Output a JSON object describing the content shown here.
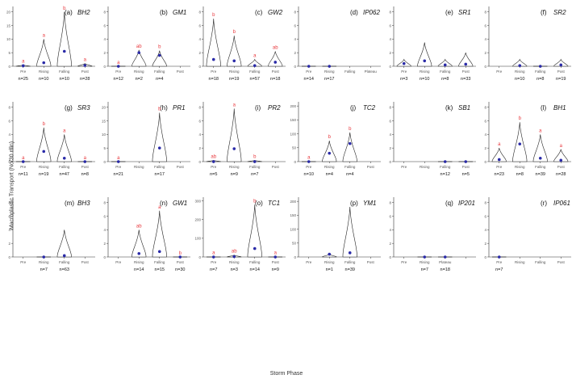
{
  "figure": {
    "ylabel": "Macroplastic Transport (No/30 min)",
    "xlabel": "Storm Phase"
  },
  "colors": {
    "letters": "#e8383d",
    "points": "#2a2aa8",
    "violin": "#222222",
    "axis": "#333333"
  },
  "chart_data": [
    {
      "type": "violin",
      "id": "a",
      "tag": "(a)",
      "site": "BH2",
      "categories": [
        "Pre",
        "Rising",
        "Falling",
        "Post"
      ],
      "yticks": [
        0,
        5,
        10,
        15,
        20
      ],
      "ylim": [
        0,
        22
      ],
      "means": [
        0.2,
        1.3,
        5.5,
        0.3
      ],
      "maxes": [
        0.5,
        10,
        20,
        1
      ],
      "letters": [
        "a",
        "a",
        "b",
        "a"
      ],
      "counts": [
        "n=25",
        "n=10",
        "n=10",
        "n=28"
      ]
    },
    {
      "type": "violin",
      "id": "b",
      "tag": "(b)",
      "site": "GM1",
      "categories": [
        "Pre",
        "Rising",
        "Falling",
        "Post"
      ],
      "yticks": [
        0,
        2,
        4,
        6,
        8
      ],
      "ylim": [
        0,
        8.8
      ],
      "means": [
        0,
        2,
        1.6,
        null
      ],
      "maxes": [
        0,
        2.4,
        2.3,
        null
      ],
      "letters": [
        "a",
        "ab",
        "b",
        ""
      ],
      "counts": [
        "n=12",
        "n=2",
        "n=4",
        ""
      ]
    },
    {
      "type": "violin",
      "id": "c",
      "tag": "(c)",
      "site": "GW2",
      "categories": [
        "Pre",
        "Rising",
        "Falling",
        "Post"
      ],
      "yticks": [
        0,
        2,
        4,
        6,
        8
      ],
      "ylim": [
        0,
        8.8
      ],
      "means": [
        1,
        0.8,
        0.1,
        0.6
      ],
      "maxes": [
        7,
        4.5,
        1,
        2.2
      ],
      "letters": [
        "b",
        "b",
        "a",
        "ab"
      ],
      "counts": [
        "n=18",
        "n=19",
        "n=57",
        "n=18"
      ]
    },
    {
      "type": "violin",
      "id": "d",
      "tag": "(d)",
      "site": "IP062",
      "categories": [
        "Pre",
        "Rising",
        "Falling",
        "Plateau"
      ],
      "yticks": [
        0,
        2,
        4,
        6,
        8
      ],
      "ylim": [
        0,
        8.8
      ],
      "means": [
        0,
        0,
        null,
        null
      ],
      "maxes": [
        0,
        0,
        null,
        null
      ],
      "letters": [
        "",
        "",
        "",
        ""
      ],
      "counts": [
        "n=14",
        "n=17",
        "",
        ""
      ]
    },
    {
      "type": "violin",
      "id": "e",
      "tag": "(e)",
      "site": "SR1",
      "categories": [
        "Pre",
        "Rising",
        "Falling",
        "Post"
      ],
      "yticks": [
        0,
        2,
        4,
        6,
        8
      ],
      "ylim": [
        0,
        8.8
      ],
      "means": [
        0.4,
        0.8,
        0.2,
        0.3
      ],
      "maxes": [
        1,
        3.5,
        1,
        2
      ],
      "letters": [
        "",
        "",
        "",
        ""
      ],
      "counts": [
        "n=3",
        "n=10",
        "n=8",
        "n=33"
      ]
    },
    {
      "type": "violin",
      "id": "f",
      "tag": "(f)",
      "site": "SR2",
      "categories": [
        "Pre",
        "Rising",
        "Falling",
        "Post"
      ],
      "yticks": [
        0,
        2,
        4,
        6,
        8
      ],
      "ylim": [
        0,
        8.8
      ],
      "means": [
        null,
        0.1,
        0,
        0.2
      ],
      "maxes": [
        null,
        1,
        0,
        1
      ],
      "letters": [
        "",
        "",
        "",
        ""
      ],
      "counts": [
        "",
        "n=10",
        "n=8",
        "n=19"
      ]
    },
    {
      "type": "violin",
      "id": "g",
      "tag": "(g)",
      "site": "SR3",
      "categories": [
        "Pre",
        "Rising",
        "Falling",
        "Post"
      ],
      "yticks": [
        0,
        2,
        4,
        6,
        8
      ],
      "ylim": [
        0,
        8.8
      ],
      "means": [
        0,
        1.5,
        0.5,
        0
      ],
      "maxes": [
        0,
        5,
        4,
        0
      ],
      "letters": [
        "a",
        "b",
        "a",
        "a"
      ],
      "counts": [
        "n=11",
        "n=19",
        "n=47",
        "n=8"
      ]
    },
    {
      "type": "violin",
      "id": "h",
      "tag": "(h)",
      "site": "PR1",
      "categories": [
        "Pre",
        "Rising",
        "Falling",
        "Post"
      ],
      "yticks": [
        0,
        5,
        10,
        15,
        20
      ],
      "ylim": [
        0,
        22
      ],
      "means": [
        0,
        null,
        5,
        null
      ],
      "maxes": [
        0,
        null,
        18,
        null
      ],
      "letters": [
        "a",
        "",
        "b",
        ""
      ],
      "counts": [
        "n=21",
        "",
        "n=17",
        ""
      ]
    },
    {
      "type": "violin",
      "id": "i",
      "tag": "(i)",
      "site": "PR2",
      "categories": [
        "Pre",
        "Rising",
        "Falling",
        "Post"
      ],
      "yticks": [
        0,
        2,
        4,
        6,
        8
      ],
      "ylim": [
        0,
        8.8
      ],
      "means": [
        0,
        1.9,
        0,
        null
      ],
      "maxes": [
        0.2,
        7.8,
        0.2,
        null
      ],
      "letters": [
        "ab",
        "a",
        "b",
        ""
      ],
      "counts": [
        "n=5",
        "n=9",
        "n=7",
        ""
      ]
    },
    {
      "type": "violin",
      "id": "j",
      "tag": "(j)",
      "site": "TC2",
      "categories": [
        "Pre",
        "Rising",
        "Falling",
        "Post"
      ],
      "yticks": [
        0,
        50,
        100,
        150,
        200
      ],
      "ylim": [
        0,
        215
      ],
      "means": [
        0,
        30,
        65,
        null
      ],
      "maxes": [
        2,
        75,
        105,
        null
      ],
      "letters": [
        "a",
        "b",
        "b",
        ""
      ],
      "counts": [
        "n=10",
        "n=4",
        "n=4",
        ""
      ]
    },
    {
      "type": "violin",
      "id": "k",
      "tag": "(k)",
      "site": "SB1",
      "categories": [
        "Pre",
        "Rising",
        "Falling",
        "Post"
      ],
      "yticks": [
        0,
        2,
        4,
        6,
        8
      ],
      "ylim": [
        0,
        8.8
      ],
      "means": [
        null,
        null,
        0,
        0
      ],
      "maxes": [
        null,
        null,
        0,
        0
      ],
      "letters": [
        "",
        "",
        "",
        ""
      ],
      "counts": [
        "",
        "",
        "n=12",
        "n=5"
      ]
    },
    {
      "type": "violin",
      "id": "l",
      "tag": "(l)",
      "site": "BH1",
      "categories": [
        "Pre",
        "Rising",
        "Falling",
        "Post"
      ],
      "yticks": [
        0,
        2,
        4,
        6,
        8
      ],
      "ylim": [
        0,
        8.8
      ],
      "means": [
        0.3,
        2.6,
        0.5,
        0.2
      ],
      "maxes": [
        2,
        5.8,
        4,
        1.8
      ],
      "letters": [
        "a",
        "b",
        "a",
        "a"
      ],
      "counts": [
        "n=23",
        "n=8",
        "n=39",
        "n=28"
      ]
    },
    {
      "type": "violin",
      "id": "m",
      "tag": "(m)",
      "site": "BH3",
      "categories": [
        "Pre",
        "Rising",
        "Falling",
        "Post"
      ],
      "yticks": [
        0,
        2,
        4,
        6,
        8
      ],
      "ylim": [
        0,
        8.8
      ],
      "means": [
        null,
        0,
        0.2,
        null
      ],
      "maxes": [
        null,
        0,
        4,
        null
      ],
      "letters": [
        "",
        "",
        "",
        ""
      ],
      "counts": [
        "",
        "n=7",
        "n=63",
        ""
      ]
    },
    {
      "type": "violin",
      "id": "n",
      "tag": "(n)",
      "site": "GW1",
      "categories": [
        "Pre",
        "Rising",
        "Falling",
        "Post"
      ],
      "yticks": [
        0,
        2,
        4,
        6,
        8
      ],
      "ylim": [
        0,
        8.8
      ],
      "means": [
        null,
        0.5,
        0.8,
        0
      ],
      "maxes": [
        null,
        4,
        6.8,
        0
      ],
      "letters": [
        "",
        "ab",
        "a",
        "b"
      ],
      "counts": [
        "",
        "n=14",
        "n=15",
        "n=30"
      ]
    },
    {
      "type": "violin",
      "id": "o",
      "tag": "(o)",
      "site": "TC1",
      "categories": [
        "Pre",
        "Rising",
        "Falling",
        "Post"
      ],
      "yticks": [
        0,
        100,
        200,
        300
      ],
      "ylim": [
        0,
        320
      ],
      "means": [
        0,
        2,
        45,
        0
      ],
      "maxes": [
        3,
        10,
        280,
        2
      ],
      "letters": [
        "a",
        "ab",
        "b",
        "a"
      ],
      "counts": [
        "n=7",
        "n=3",
        "n=14",
        "n=9"
      ]
    },
    {
      "type": "violin",
      "id": "p",
      "tag": "(p)",
      "site": "YM1",
      "categories": [
        "Pre",
        "Rising",
        "Falling",
        "Post"
      ],
      "yticks": [
        0,
        50,
        100,
        150,
        200
      ],
      "ylim": [
        0,
        215
      ],
      "means": [
        null,
        10,
        15,
        null
      ],
      "maxes": [
        null,
        10,
        180,
        null
      ],
      "letters": [
        "",
        "",
        "",
        ""
      ],
      "counts": [
        "",
        "n=1",
        "n=39",
        ""
      ]
    },
    {
      "type": "violin",
      "id": "q",
      "tag": "(q)",
      "site": "IP201",
      "categories": [
        "Pre",
        "Rising",
        "Plateau",
        ""
      ],
      "yticks": [
        0,
        2,
        4,
        6,
        8
      ],
      "ylim": [
        0,
        8.8
      ],
      "means": [
        null,
        0,
        0,
        null
      ],
      "maxes": [
        null,
        0,
        0,
        null
      ],
      "letters": [
        "",
        "",
        "",
        ""
      ],
      "counts": [
        "",
        "n=7",
        "n=18",
        ""
      ]
    },
    {
      "type": "violin",
      "id": "r",
      "tag": "(r)",
      "site": "IP061",
      "categories": [
        "Pre",
        "Rising",
        "Falling",
        "Post"
      ],
      "yticks": [
        0,
        2,
        4,
        6,
        8
      ],
      "ylim": [
        0,
        8.8
      ],
      "means": [
        0,
        null,
        null,
        null
      ],
      "maxes": [
        0,
        null,
        null,
        null
      ],
      "letters": [
        "",
        "",
        "",
        ""
      ],
      "counts": [
        "n=7",
        "",
        "",
        ""
      ]
    }
  ]
}
